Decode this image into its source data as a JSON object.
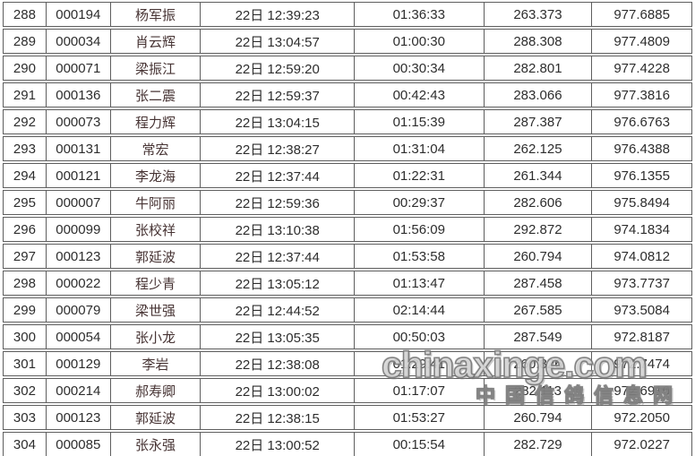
{
  "watermark": {
    "main": "chinaxinge.com",
    "sub": "中国信鸽信息网"
  },
  "colors": {
    "border": "#5e5e5e",
    "text": "#2d2d2d",
    "name_text": "#473434",
    "background": "#ffffff"
  },
  "table": {
    "columns": [
      "rank",
      "ring",
      "name",
      "clock",
      "interval",
      "distance",
      "speed"
    ],
    "rows": [
      {
        "rank": "288",
        "ring": "000194",
        "name": "杨军振",
        "clock": "22日 12:39:23",
        "interval": "01:36:33",
        "distance": "263.373",
        "speed": "977.6885"
      },
      {
        "rank": "289",
        "ring": "000034",
        "name": "肖云辉",
        "clock": "22日 13:04:57",
        "interval": "01:00:30",
        "distance": "288.308",
        "speed": "977.4809"
      },
      {
        "rank": "290",
        "ring": "000071",
        "name": "梁振江",
        "clock": "22日 12:59:20",
        "interval": "00:30:34",
        "distance": "282.801",
        "speed": "977.4228"
      },
      {
        "rank": "291",
        "ring": "000136",
        "name": "张二震",
        "clock": "22日 12:59:37",
        "interval": "00:42:43",
        "distance": "283.066",
        "speed": "977.3816"
      },
      {
        "rank": "292",
        "ring": "000073",
        "name": "程力辉",
        "clock": "22日 13:04:15",
        "interval": "01:15:39",
        "distance": "287.387",
        "speed": "976.6763"
      },
      {
        "rank": "293",
        "ring": "000131",
        "name": "常宏",
        "clock": "22日 12:38:27",
        "interval": "01:31:04",
        "distance": "262.125",
        "speed": "976.4388"
      },
      {
        "rank": "294",
        "ring": "000121",
        "name": "李龙海",
        "clock": "22日 12:37:44",
        "interval": "01:22:31",
        "distance": "261.344",
        "speed": "976.1355"
      },
      {
        "rank": "295",
        "ring": "000007",
        "name": "牛阿丽",
        "clock": "22日 12:59:36",
        "interval": "00:29:37",
        "distance": "282.606",
        "speed": "975.8494"
      },
      {
        "rank": "296",
        "ring": "000099",
        "name": "张校祥",
        "clock": "22日 13:10:38",
        "interval": "01:56:09",
        "distance": "292.872",
        "speed": "974.1834"
      },
      {
        "rank": "297",
        "ring": "000123",
        "name": "郭延波",
        "clock": "22日 12:37:44",
        "interval": "01:53:58",
        "distance": "260.794",
        "speed": "974.0812"
      },
      {
        "rank": "298",
        "ring": "000022",
        "name": "程少青",
        "clock": "22日 13:05:12",
        "interval": "01:13:47",
        "distance": "287.458",
        "speed": "973.7737"
      },
      {
        "rank": "299",
        "ring": "000079",
        "name": "梁世强",
        "clock": "22日 12:44:52",
        "interval": "02:14:44",
        "distance": "267.585",
        "speed": "973.5084"
      },
      {
        "rank": "300",
        "ring": "000054",
        "name": "张小龙",
        "clock": "22日 13:05:35",
        "interval": "00:50:03",
        "distance": "287.549",
        "speed": "972.8187"
      },
      {
        "rank": "301",
        "ring": "000129",
        "name": "李岩",
        "clock": "22日 12:38:08",
        "interval": "01:29:41",
        "distance": "260.826",
        "speed": "972.7474"
      },
      {
        "rank": "302",
        "ring": "000214",
        "name": "郝寿卿",
        "clock": "22日 13:00:02",
        "interval": "01:17:07",
        "distance": "282.113",
        "speed": "972.6916"
      },
      {
        "rank": "303",
        "ring": "000123",
        "name": "郭延波",
        "clock": "22日 12:38:15",
        "interval": "01:53:27",
        "distance": "260.794",
        "speed": "972.2050"
      },
      {
        "rank": "304",
        "ring": "000085",
        "name": "张永强",
        "clock": "22日 13:00:52",
        "interval": "00:15:54",
        "distance": "282.729",
        "speed": "972.0227"
      }
    ]
  }
}
